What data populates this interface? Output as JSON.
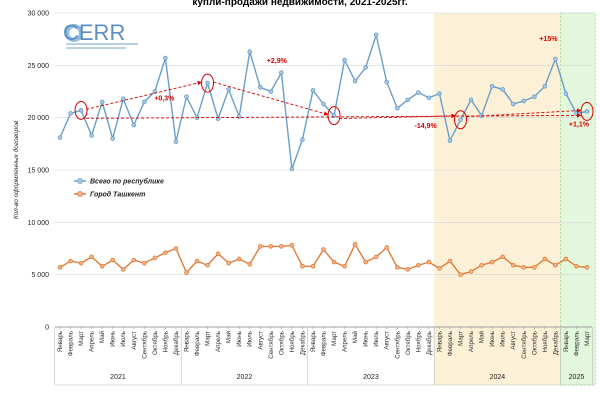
{
  "chart_data": {
    "type": "line",
    "title": "купли-продажи недвижимости, 2021-2025гг.",
    "ylabel": "Кол-во оформленных договоров",
    "ylim": [
      0,
      30000
    ],
    "yticks": [
      "0",
      "5 000",
      "10 000",
      "15 000",
      "20 000",
      "25 000",
      "30 000"
    ],
    "grid": true,
    "legend": "left-middle",
    "categories": [
      "Январь",
      "Февраль",
      "Март",
      "Апрель",
      "Май",
      "Июнь",
      "Июль",
      "Август",
      "Сентябрь",
      "Октябрь",
      "Ноябрь",
      "Декабрь",
      "Январь",
      "Февраль",
      "Март",
      "Апрель",
      "Май",
      "Июнь",
      "Июль",
      "Август",
      "Сентябрь",
      "Октябрь",
      "Ноябрь",
      "Декабрь",
      "Январь",
      "Февраль",
      "Март",
      "Апрель",
      "Май",
      "Июнь",
      "Июль",
      "Август",
      "Сентябрь",
      "Октябрь",
      "Ноябрь",
      "Декабрь",
      "Январь",
      "Февраль",
      "Март",
      "Апрель",
      "Май",
      "Июнь",
      "Июль",
      "Август",
      "Сентябрь",
      "Октябрь",
      "Ноябрь",
      "Декабрь",
      "Январь",
      "Февраль",
      "Март"
    ],
    "years": [
      {
        "label": "2021",
        "start": 0,
        "end": 11
      },
      {
        "label": "2022",
        "start": 12,
        "end": 23
      },
      {
        "label": "2023",
        "start": 24,
        "end": 35
      },
      {
        "label": "2024",
        "start": 36,
        "end": 47
      },
      {
        "label": "2025",
        "start": 48,
        "end": 50
      }
    ],
    "series": [
      {
        "name": "Всего по республике",
        "color": "#6a9ec8",
        "values": [
          18100,
          20400,
          20700,
          18300,
          21500,
          18000,
          21800,
          19300,
          21500,
          22500,
          25700,
          17700,
          22000,
          20000,
          23300,
          19900,
          22700,
          20100,
          26300,
          22900,
          22500,
          24300,
          15100,
          17900,
          22600,
          21300,
          20200,
          25500,
          23500,
          24800,
          27900,
          23400,
          20900,
          21700,
          22400,
          21900,
          22300,
          17800,
          19800,
          21700,
          20200,
          23000,
          22700,
          21300,
          21600,
          22000,
          23000,
          25600,
          22300,
          20400,
          20600
        ]
      },
      {
        "name": "Город Ташкент",
        "color": "#e07b3a",
        "values": [
          5700,
          6300,
          6100,
          6700,
          5800,
          6400,
          5500,
          6400,
          6100,
          6600,
          7100,
          7500,
          5200,
          6300,
          5900,
          7000,
          6100,
          6500,
          6000,
          7700,
          7700,
          7700,
          7800,
          5800,
          5800,
          7400,
          6200,
          5800,
          7900,
          6200,
          6700,
          7600,
          5700,
          5500,
          5900,
          6200,
          5600,
          6300,
          5000,
          5300,
          5900,
          6200,
          6700,
          5900,
          5700,
          5700,
          6500,
          5900,
          6500,
          5800,
          5700
        ]
      }
    ],
    "annotations": [
      "+0,3%",
      "+2,9%",
      "-14,9%",
      "+15%",
      "+1,1%"
    ],
    "highlight_colors": {
      "year_2024": "#fcf1d6",
      "year_2025": "#e3f7dc",
      "arrow": "#d40000"
    }
  },
  "logo": {
    "text": "CERR"
  }
}
